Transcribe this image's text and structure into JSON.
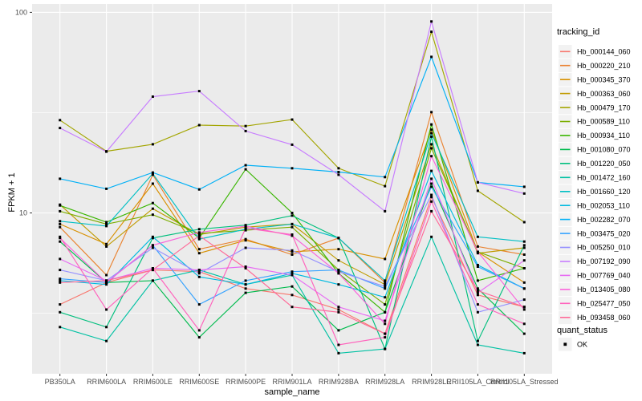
{
  "figure": {
    "xlabel": "sample_name",
    "ylabel": "FPKM + 1",
    "legend_title": "tracking_id",
    "quant_legend_title": "quant_status",
    "quant_legend_item": "OK"
  },
  "chart_data": {
    "type": "line",
    "title": "",
    "xlabel": "sample_name",
    "ylabel": "FPKM + 1",
    "y_scale": "log10",
    "ylim": [
      1.58,
      110
    ],
    "y_ticks": [
      10,
      100
    ],
    "y_minor": [
      3.1623,
      31.623
    ],
    "grid": true,
    "legend_position": "right",
    "panel_bg": "#EBEBEB",
    "grid_color": "#FFFFFF",
    "tick_label_color": "#4D4D4D",
    "tick_mark_color": "#333333",
    "point_color": "#000000",
    "legend_key_bg": "#F2F2F2",
    "quant_status_label": "OK",
    "categories": [
      "PB350LA",
      "RRIM600LA",
      "RRIM600LE",
      "RRIM600SE",
      "RRIM600PE",
      "RRIM901LA",
      "RRIM928BA",
      "RRIM928LA",
      "RRIM928LE",
      "RRII105LA_Control",
      "RRII105LA_Stressed"
    ],
    "series": [
      {
        "name": "Hb_000144_060",
        "color": "#F8766D",
        "values": [
          3.5,
          4.5,
          5.2,
          5.1,
          4.2,
          3.9,
          3.3,
          2.5,
          12.0,
          3.9,
          3.4
        ]
      },
      {
        "name": "Hb_000220_210",
        "color": "#EA8331",
        "values": [
          8.5,
          4.9,
          15.5,
          6.6,
          7.4,
          6.2,
          7.5,
          4.5,
          31.8,
          6.8,
          6.2
        ]
      },
      {
        "name": "Hb_000345_370",
        "color": "#D89000",
        "values": [
          8.8,
          7.0,
          14.0,
          6.3,
          7.3,
          6.4,
          6.6,
          5.9,
          26.0,
          6.4,
          4.5
        ]
      },
      {
        "name": "Hb_000363_060",
        "color": "#C09B00",
        "values": [
          11.0,
          6.8,
          10.5,
          7.8,
          8.5,
          8.8,
          5.8,
          4.4,
          22.0,
          6.3,
          6.7
        ]
      },
      {
        "name": "Hb_000479_170",
        "color": "#A3A500",
        "values": [
          29.0,
          20.3,
          22.0,
          27.4,
          27.1,
          29.2,
          16.7,
          13.6,
          80.0,
          12.9,
          9.0
        ]
      },
      {
        "name": "Hb_000589_110",
        "color": "#7CAE00",
        "values": [
          10.2,
          8.8,
          9.8,
          7.9,
          8.2,
          8.5,
          5.2,
          3.5,
          21.0,
          6.4,
          5.3
        ]
      },
      {
        "name": "Hb_000934_110",
        "color": "#39B600",
        "values": [
          10.9,
          9.0,
          11.2,
          7.5,
          16.5,
          10.0,
          5.0,
          3.2,
          27.6,
          4.6,
          5.3
        ]
      },
      {
        "name": "Hb_001080_070",
        "color": "#00BB4E",
        "values": [
          7.2,
          4.5,
          4.6,
          2.4,
          4.0,
          4.3,
          2.6,
          3.2,
          14.0,
          4.2,
          2.5
        ]
      },
      {
        "name": "Hb_001220_050",
        "color": "#00BF7D",
        "values": [
          3.2,
          2.7,
          7.5,
          8.3,
          8.7,
          9.7,
          7.5,
          2.1,
          24.0,
          2.3,
          6.9
        ]
      },
      {
        "name": "Hb_001472_160",
        "color": "#00C1A3",
        "values": [
          2.7,
          2.3,
          4.6,
          5.2,
          4.4,
          4.9,
          2.0,
          2.1,
          7.6,
          2.2,
          2.0
        ]
      },
      {
        "name": "Hb_001660_120",
        "color": "#00BFC4",
        "values": [
          9.1,
          8.6,
          15.7,
          7.4,
          8.3,
          8.8,
          7.5,
          4.6,
          25.0,
          7.6,
          7.2
        ]
      },
      {
        "name": "Hb_002053_110",
        "color": "#00BAE0",
        "values": [
          4.6,
          4.4,
          7.6,
          4.8,
          4.4,
          5.0,
          4.4,
          3.8,
          16.2,
          5.5,
          4.2
        ]
      },
      {
        "name": "Hb_002282_070",
        "color": "#00B0F6",
        "values": [
          14.8,
          13.2,
          15.9,
          13.1,
          17.3,
          16.7,
          16.0,
          15.1,
          60.0,
          14.2,
          13.5
        ]
      },
      {
        "name": "Hb_003475_020",
        "color": "#35A2FF",
        "values": [
          4.7,
          4.5,
          6.9,
          3.5,
          4.6,
          5.1,
          5.2,
          4.2,
          13.5,
          5.4,
          4.2
        ]
      },
      {
        "name": "Hb_005250_010",
        "color": "#9590FF",
        "values": [
          5.2,
          4.6,
          6.7,
          5.0,
          6.7,
          6.5,
          5.1,
          4.3,
          12.3,
          3.2,
          3.7
        ]
      },
      {
        "name": "Hb_007192_090",
        "color": "#C77CFF",
        "values": [
          26.5,
          20.2,
          38.0,
          40.5,
          25.6,
          21.9,
          15.5,
          10.2,
          90.0,
          14.2,
          12.5
        ]
      },
      {
        "name": "Hb_007769_040",
        "color": "#E76BF3",
        "values": [
          5.9,
          4.6,
          5.3,
          5.2,
          5.4,
          4.9,
          3.4,
          2.9,
          14.8,
          4.0,
          5.8
        ]
      },
      {
        "name": "Hb_013405_080",
        "color": "#FA62DB",
        "values": [
          7.5,
          4.5,
          6.9,
          8.0,
          8.6,
          7.7,
          5.0,
          2.8,
          19.2,
          6.4,
          3.3
        ]
      },
      {
        "name": "Hb_025477_050",
        "color": "#FF62BC",
        "values": [
          7.6,
          3.3,
          5.3,
          2.6,
          8.4,
          7.8,
          2.2,
          2.4,
          11.4,
          3.5,
          2.8
        ]
      },
      {
        "name": "Hb_093458_060",
        "color": "#FF6A98",
        "values": [
          4.5,
          4.6,
          5.2,
          7.7,
          5.3,
          3.4,
          3.2,
          2.5,
          10.2,
          4.1,
          3.4
        ]
      }
    ]
  }
}
